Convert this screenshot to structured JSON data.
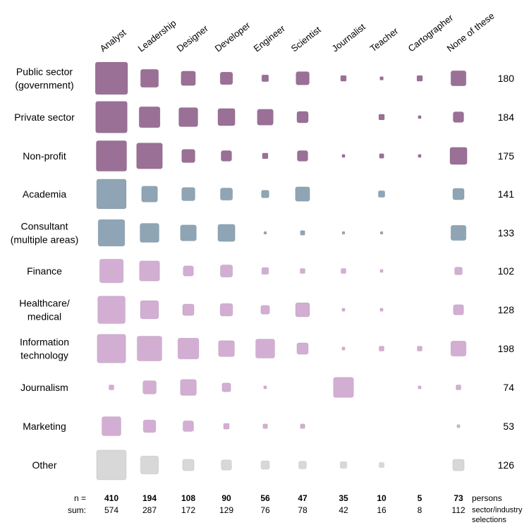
{
  "chart_data": {
    "type": "heatmap",
    "columns": [
      "Analyst",
      "Leadership",
      "Designer",
      "Developer",
      "Engineer",
      "Scientist",
      "Journalist",
      "Teacher",
      "Cartographer",
      "None of these"
    ],
    "rows": [
      {
        "label": [
          "Public sector",
          "(government)"
        ],
        "total": "180",
        "group": "gov",
        "values": [
          0.85,
          0.47,
          0.38,
          0.33,
          0.18,
          0.35,
          0.15,
          0.09,
          0.15,
          0.4
        ]
      },
      {
        "label": [
          "Private sector"
        ],
        "total": "184",
        "group": "gov",
        "values": [
          0.83,
          0.55,
          0.5,
          0.45,
          0.42,
          0.3,
          0,
          0.15,
          0.08,
          0.28
        ]
      },
      {
        "label": [
          "Non-profit"
        ],
        "total": "175",
        "group": "gov",
        "values": [
          0.8,
          0.68,
          0.35,
          0.28,
          0.15,
          0.28,
          0.08,
          0.12,
          0.08,
          0.45
        ]
      },
      {
        "label": [
          "Academia"
        ],
        "total": "141",
        "group": "academia",
        "values": [
          0.78,
          0.42,
          0.35,
          0.32,
          0.2,
          0.38,
          0,
          0.17,
          0,
          0.3
        ]
      },
      {
        "label": [
          "Consultant",
          "(multiple areas)"
        ],
        "total": "133",
        "group": "academia",
        "values": [
          0.7,
          0.5,
          0.42,
          0.45,
          0.07,
          0.12,
          0.07,
          0.07,
          0,
          0.4
        ]
      },
      {
        "label": [
          "Finance"
        ],
        "total": "102",
        "group": "other_sector",
        "values": [
          0.62,
          0.53,
          0.27,
          0.32,
          0.18,
          0.13,
          0.13,
          0.08,
          0,
          0.2
        ]
      },
      {
        "label": [
          "Healthcare/",
          "medical"
        ],
        "total": "128",
        "group": "other_sector",
        "values": [
          0.72,
          0.48,
          0.3,
          0.33,
          0.23,
          0.37,
          0.08,
          0.08,
          0,
          0.27
        ]
      },
      {
        "label": [
          "Information",
          "technology"
        ],
        "total": "198",
        "group": "other_sector",
        "values": [
          0.75,
          0.65,
          0.55,
          0.42,
          0.5,
          0.3,
          0.08,
          0.13,
          0.13,
          0.4
        ]
      },
      {
        "label": [
          "Journalism"
        ],
        "total": "74",
        "group": "other_sector",
        "values": [
          0.13,
          0.35,
          0.42,
          0.23,
          0.08,
          0,
          0.53,
          0,
          0.08,
          0.13
        ]
      },
      {
        "label": [
          "Marketing"
        ],
        "total": "53",
        "group": "other_sector",
        "values": [
          0.5,
          0.33,
          0.28,
          0.15,
          0.12,
          0.12,
          0,
          0,
          0,
          0.08
        ]
      },
      {
        "label": [
          "Other"
        ],
        "total": "126",
        "group": "other",
        "values": [
          0.78,
          0.47,
          0.3,
          0.27,
          0.22,
          0.2,
          0.17,
          0.13,
          0,
          0.3
        ]
      }
    ],
    "footer": {
      "n_label": "n =",
      "sum_label": "sum:",
      "n": [
        "410",
        "194",
        "108",
        "90",
        "56",
        "47",
        "35",
        "10",
        "5",
        "73"
      ],
      "sum": [
        "574",
        "287",
        "172",
        "129",
        "76",
        "78",
        "42",
        "16",
        "8",
        "112"
      ],
      "n_unit": "persons",
      "sum_unit": [
        "sector/industry",
        "selections"
      ]
    },
    "colors": {
      "gov": "#9a7096",
      "academia": "#8fa5b5",
      "other_sector": "#d3aed3",
      "other": "#d8d8d8"
    }
  }
}
